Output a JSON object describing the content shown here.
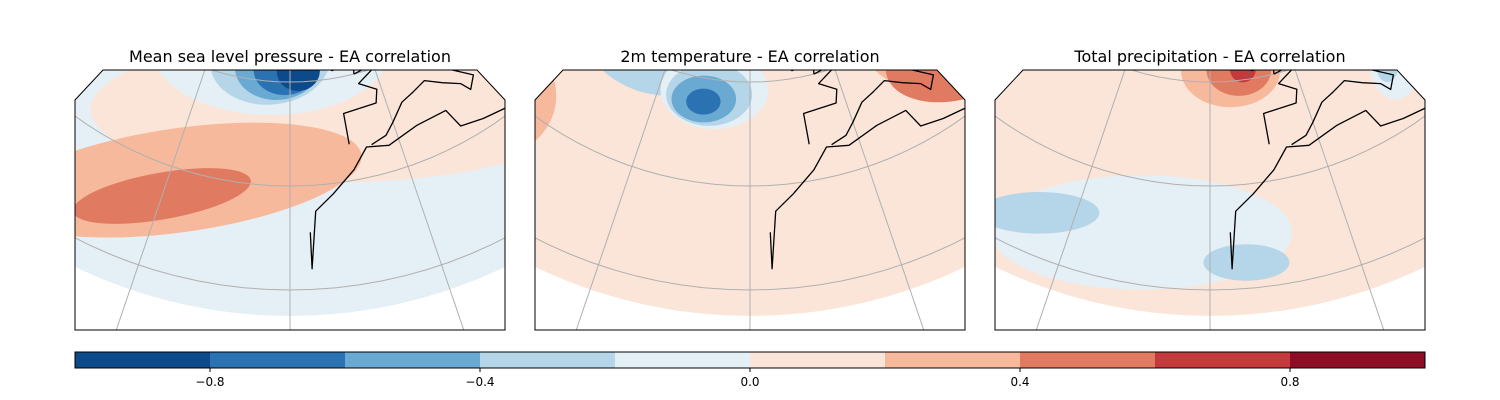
{
  "panels": [
    {
      "title": "Mean sea level pressure - EA correlation",
      "background_level": -0.1,
      "blobs": [
        {
          "level": 0.1,
          "lon": -10,
          "lat": 44,
          "rx": 1.15,
          "ry": 0.28,
          "rot": 0
        },
        {
          "level": 0.3,
          "lon": -38,
          "lat": 28,
          "rx": 0.85,
          "ry": 0.2,
          "rot": -8
        },
        {
          "level": 0.5,
          "lon": -40,
          "lat": 24,
          "rx": 0.42,
          "ry": 0.09,
          "rot": -10
        },
        {
          "level": 0.1,
          "lon": 38,
          "lat": 55,
          "rx": 0.18,
          "ry": 0.12,
          "rot": 0
        },
        {
          "level": 0.3,
          "lon": 35,
          "lat": 53,
          "rx": 0.08,
          "ry": 0.06,
          "rot": 0
        },
        {
          "level": -0.1,
          "lon": -25,
          "lat": 56,
          "rx": 0.55,
          "ry": 0.25,
          "rot": 0
        },
        {
          "level": -0.3,
          "lon": -35,
          "lat": 70,
          "rx": 0.45,
          "ry": 0.2,
          "rot": 10
        },
        {
          "level": -0.3,
          "lon": -25,
          "lat": 54,
          "rx": 0.28,
          "ry": 0.17,
          "rot": -5
        },
        {
          "level": -0.5,
          "lon": -23,
          "lat": 53,
          "rx": 0.2,
          "ry": 0.13,
          "rot": -5
        },
        {
          "level": -0.7,
          "lon": -21,
          "lat": 52.5,
          "rx": 0.15,
          "ry": 0.1,
          "rot": -5
        },
        {
          "level": -0.9,
          "lon": -18,
          "lat": 52,
          "rx": 0.1,
          "ry": 0.075,
          "rot": -5
        }
      ]
    },
    {
      "title": "2m temperature - EA correlation",
      "background_level": 0.1,
      "blobs": [
        {
          "level": 0.3,
          "lon": 28,
          "lat": 44,
          "rx": 0.48,
          "ry": 0.28,
          "rot": 0
        },
        {
          "level": 0.5,
          "lon": 22,
          "lat": 40,
          "rx": 0.3,
          "ry": 0.15,
          "rot": -10
        },
        {
          "level": 0.3,
          "lon": -65,
          "lat": 28,
          "rx": 0.28,
          "ry": 0.22,
          "rot": -25
        },
        {
          "level": 0.5,
          "lon": -68,
          "lat": 24,
          "rx": 0.18,
          "ry": 0.1,
          "rot": -25
        },
        {
          "level": 0.7,
          "lon": -78,
          "lat": 27,
          "rx": 0.03,
          "ry": 0.02,
          "rot": 0
        },
        {
          "level": -0.1,
          "lon": -10,
          "lat": 62,
          "rx": 0.4,
          "ry": 0.18,
          "rot": 0
        },
        {
          "level": -0.3,
          "lon": -45,
          "lat": 58,
          "rx": 0.4,
          "ry": 0.28,
          "rot": 15
        },
        {
          "level": -0.1,
          "lon": -28,
          "lat": 48,
          "rx": 0.25,
          "ry": 0.15,
          "rot": 0
        },
        {
          "level": -0.3,
          "lon": -29,
          "lat": 47,
          "rx": 0.2,
          "ry": 0.12,
          "rot": 0
        },
        {
          "level": -0.5,
          "lon": -30,
          "lat": 46,
          "rx": 0.15,
          "ry": 0.09,
          "rot": 0
        },
        {
          "level": -0.7,
          "lon": -30,
          "lat": 45.5,
          "rx": 0.08,
          "ry": 0.05,
          "rot": 0
        },
        {
          "level": 0.3,
          "lon": 20,
          "lat": 67,
          "rx": 0.1,
          "ry": 0.05,
          "rot": 0
        }
      ]
    },
    {
      "title": "Total precipitation - EA correlation",
      "background_level": 0.1,
      "blobs": [
        {
          "level": -0.1,
          "lon": -30,
          "lat": 20,
          "rx": 0.7,
          "ry": 0.22,
          "rot": 0
        },
        {
          "level": -0.3,
          "lon": -45,
          "lat": 18,
          "rx": 0.28,
          "ry": 0.08,
          "rot": 0
        },
        {
          "level": -0.3,
          "lon": -15,
          "lat": 15,
          "rx": 0.2,
          "ry": 0.07,
          "rot": 0
        },
        {
          "level": -0.1,
          "lon": -35,
          "lat": 70,
          "rx": 0.3,
          "ry": 0.17,
          "rot": 0
        },
        {
          "level": -0.3,
          "lon": -40,
          "lat": 68,
          "rx": 0.1,
          "ry": 0.08,
          "rot": 0
        },
        {
          "level": -0.5,
          "lon": -42,
          "lat": 64,
          "rx": 0.05,
          "ry": 0.05,
          "rot": 0
        },
        {
          "level": -0.1,
          "lon": 20,
          "lat": 42,
          "rx": 0.12,
          "ry": 0.15,
          "rot": 0
        },
        {
          "level": -0.3,
          "lon": 18,
          "lat": 42,
          "rx": 0.05,
          "ry": 0.06,
          "rot": 0
        },
        {
          "level": 0.3,
          "lon": -15,
          "lat": 52,
          "rx": 0.23,
          "ry": 0.14,
          "rot": 0
        },
        {
          "level": 0.5,
          "lon": -13,
          "lat": 52,
          "rx": 0.15,
          "ry": 0.1,
          "rot": 0
        },
        {
          "level": 0.7,
          "lon": -12,
          "lat": 52,
          "rx": 0.06,
          "ry": 0.05,
          "rot": 0
        },
        {
          "level": 0.3,
          "lon": -75,
          "lat": 40,
          "rx": 0.08,
          "ry": 0.05,
          "rot": 0
        }
      ]
    }
  ],
  "colorbar": {
    "min": -1.0,
    "max": 1.0,
    "bounds": [
      -1.0,
      -0.8,
      -0.6,
      -0.4,
      -0.2,
      0.0,
      0.2,
      0.4,
      0.6,
      0.8,
      1.0
    ],
    "colors": [
      "#0d4a8b",
      "#2b72b3",
      "#6aa9d2",
      "#b5d5e8",
      "#e5eff6",
      "#fbe5d8",
      "#f6b99c",
      "#e07b62",
      "#c23a3c",
      "#8c0d25"
    ],
    "ticks": [
      -0.8,
      -0.4,
      0.0,
      0.4,
      0.8
    ],
    "tick_labels": [
      "−0.8",
      "−0.4",
      "0.0",
      "0.4",
      "0.8"
    ]
  },
  "map": {
    "projection": "lambert-conformal",
    "meridians": [
      -80,
      -60,
      -40,
      -20,
      0,
      20,
      40
    ],
    "parallels": [
      10,
      30,
      50,
      70
    ]
  }
}
